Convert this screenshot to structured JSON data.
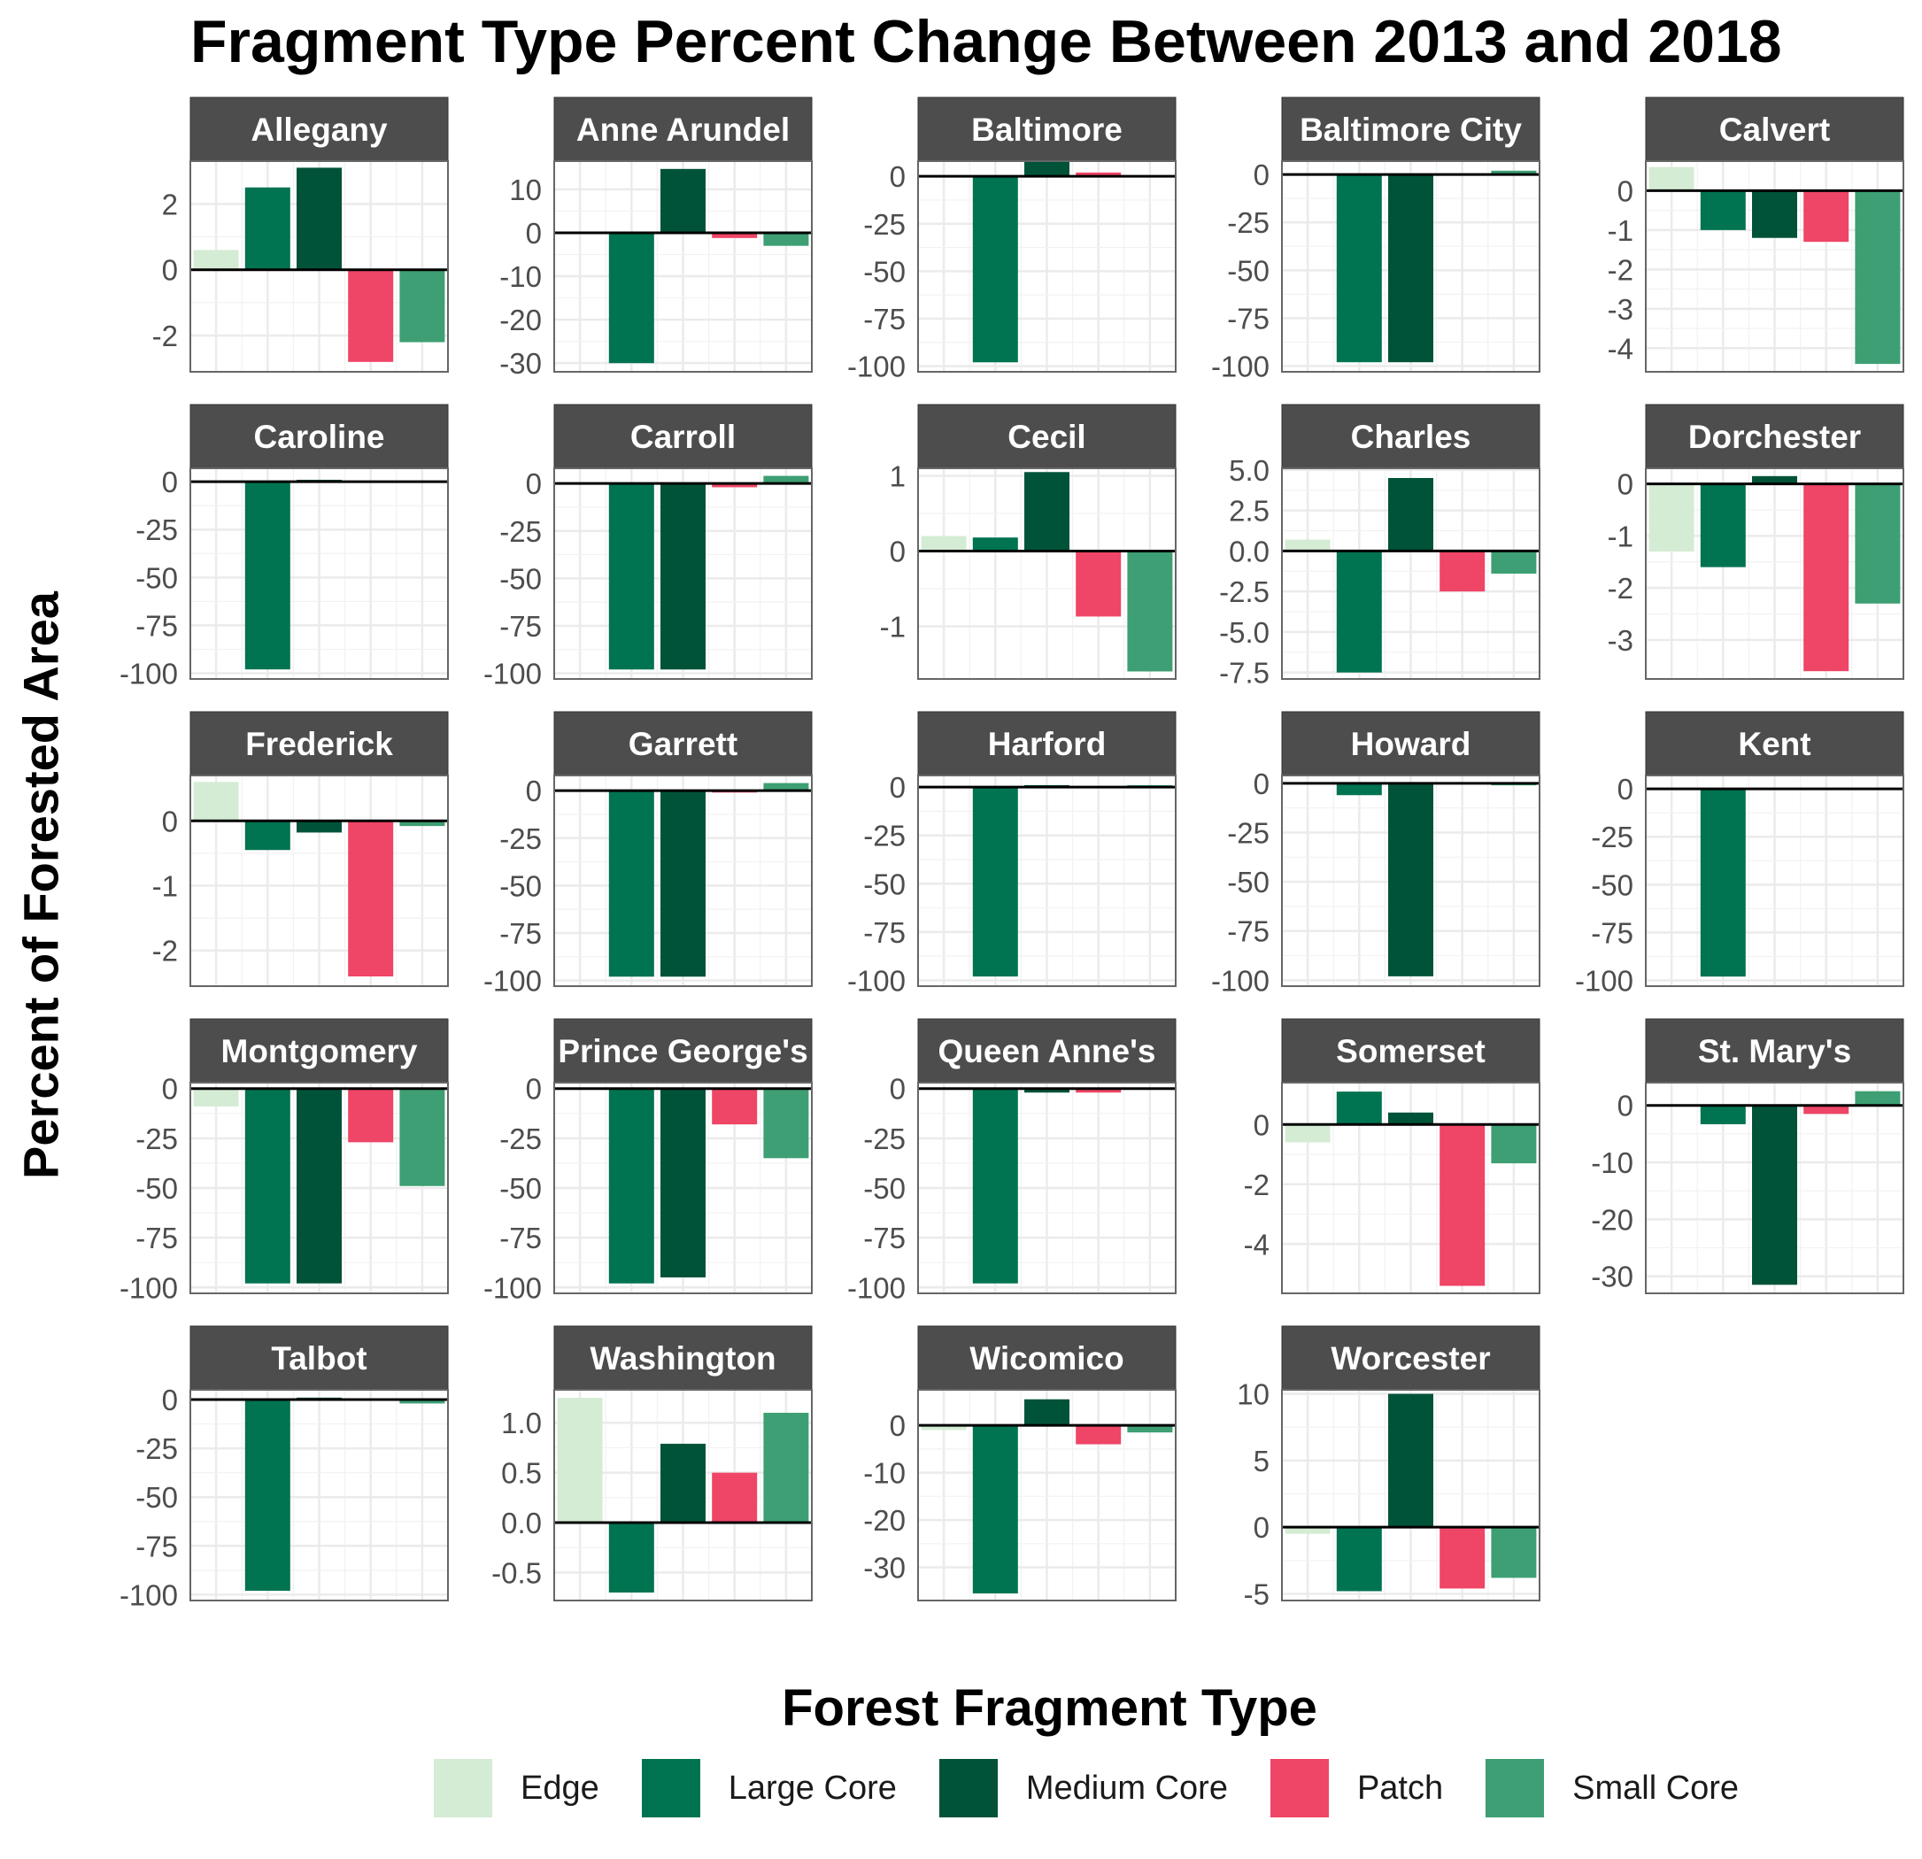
{
  "title": "Fragment Type Percent Change Between 2013 and 2018",
  "ylabel": "Percent of Forested Area",
  "legend": {
    "title": "Forest Fragment Type",
    "items": [
      {
        "label": "Edge",
        "color": "#d4ecd4"
      },
      {
        "label": "Large Core",
        "color": "#007351"
      },
      {
        "label": "Medium Core",
        "color": "#005339"
      },
      {
        "label": "Patch",
        "color": "#ef4566"
      },
      {
        "label": "Small Core",
        "color": "#3d9f73"
      }
    ]
  },
  "chart_data": {
    "type": "bar",
    "categories": [
      "Edge",
      "Large Core",
      "Medium Core",
      "Patch",
      "Small Core"
    ],
    "legend_position": "bottom",
    "grid": true,
    "panels": [
      {
        "name": "Allegany",
        "values": [
          0.6,
          2.5,
          3.1,
          -2.8,
          -2.2
        ],
        "ylim": [
          -3.1,
          3.3
        ],
        "ticks": [
          2,
          0,
          -2
        ],
        "tick_labels": [
          "2",
          "0",
          "-2"
        ]
      },
      {
        "name": "Anne Arundel",
        "values": [
          0,
          -30,
          14.7,
          -1.2,
          -3
        ],
        "ylim": [
          -32,
          16.5
        ],
        "ticks": [
          10,
          0,
          -10,
          -20,
          -30
        ],
        "tick_labels": [
          "10",
          "0",
          "-10",
          "-20",
          "-30"
        ]
      },
      {
        "name": "Baltimore",
        "values": [
          0,
          -98,
          8,
          2,
          0
        ],
        "ylim": [
          -103,
          8
        ],
        "ticks": [
          0,
          -25,
          -50,
          -75,
          -100
        ],
        "tick_labels": [
          "0",
          "-25",
          "-50",
          "-75",
          "-100"
        ]
      },
      {
        "name": "Baltimore City",
        "values": [
          0,
          -98,
          -98,
          0,
          2
        ],
        "ylim": [
          -103,
          7
        ],
        "ticks": [
          0,
          -25,
          -50,
          -75,
          -100
        ],
        "tick_labels": [
          "0",
          "-25",
          "-50",
          "-75",
          "-100"
        ]
      },
      {
        "name": "Calvert",
        "values": [
          0.6,
          -1,
          -1.2,
          -1.3,
          -4.4
        ],
        "ylim": [
          -4.6,
          0.75
        ],
        "ticks": [
          0,
          -1,
          -2,
          -3,
          -4
        ],
        "tick_labels": [
          "0",
          "-1",
          "-2",
          "-3",
          "-4"
        ]
      },
      {
        "name": "Caroline",
        "values": [
          0,
          -98,
          1,
          0,
          0
        ],
        "ylim": [
          -103,
          7
        ],
        "ticks": [
          0,
          -25,
          -50,
          -75,
          -100
        ],
        "tick_labels": [
          "0",
          "-25",
          "-50",
          "-75",
          "-100"
        ]
      },
      {
        "name": "Carroll",
        "values": [
          0,
          -98,
          -98,
          -2,
          4
        ],
        "ylim": [
          -103,
          8
        ],
        "ticks": [
          0,
          -25,
          -50,
          -75,
          -100
        ],
        "tick_labels": [
          "0",
          "-25",
          "-50",
          "-75",
          "-100"
        ]
      },
      {
        "name": "Cecil",
        "values": [
          0.2,
          0.18,
          1.05,
          -0.87,
          -1.6
        ],
        "ylim": [
          -1.7,
          1.1
        ],
        "ticks": [
          1,
          0,
          -1
        ],
        "tick_labels": [
          "1",
          "0",
          "-1"
        ]
      },
      {
        "name": "Charles",
        "values": [
          0.7,
          -7.5,
          4.5,
          -2.5,
          -1.4
        ],
        "ylim": [
          -7.9,
          5.1
        ],
        "ticks": [
          5,
          2.5,
          0,
          -2.5,
          -5,
          -7.5
        ],
        "tick_labels": [
          "5.0",
          "2.5",
          "0.0",
          "-2.5",
          "-5.0",
          "-7.5"
        ]
      },
      {
        "name": "Dorchester",
        "values": [
          -1.3,
          -1.6,
          0.15,
          -3.6,
          -2.3
        ],
        "ylim": [
          -3.75,
          0.3
        ],
        "ticks": [
          0,
          -1,
          -2,
          -3
        ],
        "tick_labels": [
          "0",
          "-1",
          "-2",
          "-3"
        ]
      },
      {
        "name": "Frederick",
        "values": [
          0.6,
          -0.45,
          -0.18,
          -2.4,
          -0.08
        ],
        "ylim": [
          -2.55,
          0.7
        ],
        "ticks": [
          0,
          -1,
          -2
        ],
        "tick_labels": [
          "0",
          "-1",
          "-2"
        ]
      },
      {
        "name": "Garrett",
        "values": [
          0,
          -98,
          -98,
          -1,
          4
        ],
        "ylim": [
          -103,
          8
        ],
        "ticks": [
          0,
          -25,
          -50,
          -75,
          -100
        ],
        "tick_labels": [
          "0",
          "-25",
          "-50",
          "-75",
          "-100"
        ]
      },
      {
        "name": "Harford",
        "values": [
          0,
          -98,
          1,
          0,
          1
        ],
        "ylim": [
          -103,
          6
        ],
        "ticks": [
          0,
          -25,
          -50,
          -75,
          -100
        ],
        "tick_labels": [
          "0",
          "-25",
          "-50",
          "-75",
          "-100"
        ]
      },
      {
        "name": "Howard",
        "values": [
          0,
          -6,
          -98,
          0,
          -1
        ],
        "ylim": [
          -103,
          4
        ],
        "ticks": [
          0,
          -25,
          -50,
          -75,
          -100
        ],
        "tick_labels": [
          "0",
          "-25",
          "-50",
          "-75",
          "-100"
        ]
      },
      {
        "name": "Kent",
        "values": [
          0,
          -98,
          0,
          0,
          0
        ],
        "ylim": [
          -103,
          7
        ],
        "ticks": [
          0,
          -25,
          -50,
          -75,
          -100
        ],
        "tick_labels": [
          "0",
          "-25",
          "-50",
          "-75",
          "-100"
        ]
      },
      {
        "name": "Montgomery",
        "values": [
          -9,
          -98,
          -98,
          -27,
          -49
        ],
        "ylim": [
          -103,
          3
        ],
        "ticks": [
          0,
          -25,
          -50,
          -75,
          -100
        ],
        "tick_labels": [
          "0",
          "-25",
          "-50",
          "-75",
          "-100"
        ]
      },
      {
        "name": "Prince George's",
        "values": [
          0,
          -98,
          -95,
          -18,
          -35
        ],
        "ylim": [
          -103,
          3
        ],
        "ticks": [
          0,
          -25,
          -50,
          -75,
          -100
        ],
        "tick_labels": [
          "0",
          "-25",
          "-50",
          "-75",
          "-100"
        ]
      },
      {
        "name": "Queen Anne's",
        "values": [
          0,
          -98,
          -2,
          -2,
          0
        ],
        "ylim": [
          -103,
          3
        ],
        "ticks": [
          0,
          -25,
          -50,
          -75,
          -100
        ],
        "tick_labels": [
          "0",
          "-25",
          "-50",
          "-75",
          "-100"
        ]
      },
      {
        "name": "Somerset",
        "values": [
          -0.6,
          1.1,
          0.4,
          -5.4,
          -1.3
        ],
        "ylim": [
          -5.65,
          1.4
        ],
        "ticks": [
          0,
          -2,
          -4
        ],
        "tick_labels": [
          "0",
          "-2",
          "-4"
        ]
      },
      {
        "name": "St. Mary's",
        "values": [
          0,
          -3.3,
          -31.5,
          -1.5,
          2.5
        ],
        "ylim": [
          -33,
          4
        ],
        "ticks": [
          0,
          -10,
          -20,
          -30
        ],
        "tick_labels": [
          "0",
          "-10",
          "-20",
          "-30"
        ]
      },
      {
        "name": "Talbot",
        "values": [
          0,
          -98,
          1,
          0,
          -2
        ],
        "ylim": [
          -103,
          5
        ],
        "ticks": [
          0,
          -25,
          -50,
          -75,
          -100
        ],
        "tick_labels": [
          "0",
          "-25",
          "-50",
          "-75",
          "-100"
        ]
      },
      {
        "name": "Washington",
        "values": [
          1.25,
          -0.7,
          0.79,
          0.5,
          1.1
        ],
        "ylim": [
          -0.78,
          1.33
        ],
        "ticks": [
          1,
          0.5,
          0,
          -0.5
        ],
        "tick_labels": [
          "1.0",
          "0.5",
          "0.0",
          "-0.5"
        ]
      },
      {
        "name": "Wicomico",
        "values": [
          -1,
          -35.5,
          5.5,
          -4,
          -1.5
        ],
        "ylim": [
          -37,
          7.5
        ],
        "ticks": [
          0,
          -10,
          -20,
          -30
        ],
        "tick_labels": [
          "0",
          "-10",
          "-20",
          "-30"
        ]
      },
      {
        "name": "Worcester",
        "values": [
          -0.5,
          -4.8,
          10,
          -4.6,
          -3.8
        ],
        "ylim": [
          -5.5,
          10.3
        ],
        "ticks": [
          10,
          5,
          0,
          -5
        ],
        "tick_labels": [
          "10",
          "5",
          "0",
          "-5"
        ]
      }
    ]
  }
}
